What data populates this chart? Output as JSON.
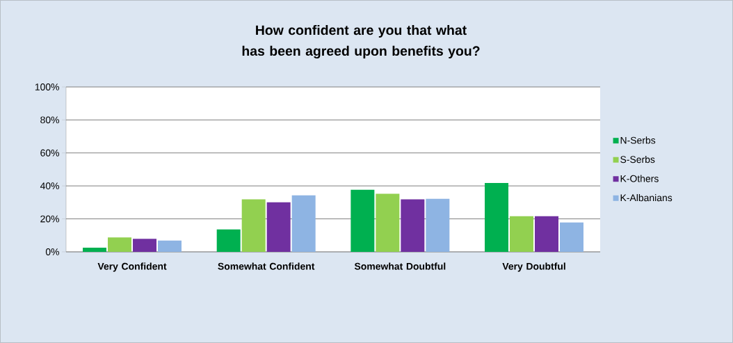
{
  "chart_data": {
    "type": "bar",
    "title": "How confident are you that what has been agreed upon benefits you?",
    "categories": [
      "Very Confident",
      "Somewhat Confident",
      "Somewhat Doubtful",
      "Very Doubtful"
    ],
    "series": [
      {
        "name": "N-Serbs",
        "color": "#00b050",
        "values": [
          2.5,
          13.6,
          37.7,
          41.8
        ]
      },
      {
        "name": "S-Serbs",
        "color": "#92d050",
        "values": [
          8.8,
          31.8,
          35.2,
          21.6
        ]
      },
      {
        "name": "K-Others",
        "color": "#7030a0",
        "values": [
          7.9,
          30.1,
          31.8,
          21.6
        ]
      },
      {
        "name": "K-Albanians",
        "color": "#8eb4e3",
        "values": [
          6.9,
          34.3,
          32.2,
          17.8
        ]
      }
    ],
    "ylim": [
      0,
      100
    ],
    "yticks": [
      {
        "value": 0,
        "label": "0%"
      },
      {
        "value": 20,
        "label": "20%"
      },
      {
        "value": 40,
        "label": "40%"
      },
      {
        "value": 60,
        "label": "60%"
      },
      {
        "value": 80,
        "label": "80%"
      },
      {
        "value": 100,
        "label": "100%"
      }
    ],
    "grid": "y",
    "legend": "right"
  }
}
